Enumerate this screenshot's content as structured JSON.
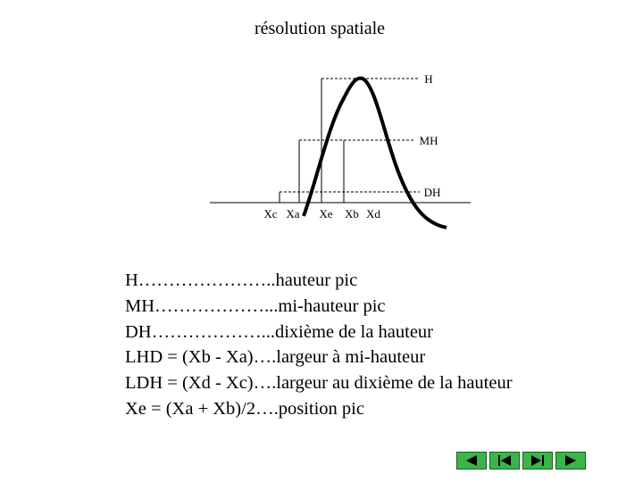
{
  "title": "résolution spatiale",
  "diagram": {
    "levels": [
      "H",
      "MH",
      "DH"
    ],
    "positions": [
      "Xc",
      "Xa",
      "Xe",
      "Xb",
      "Xd"
    ]
  },
  "definitions": [
    "H…………………..hauteur pic",
    "MH………………...mi-hauteur pic",
    "DH………………...dixième de la hauteur",
    "LHD = (Xb - Xa)….largeur à mi-hauteur",
    "LDH = (Xd - Xc)….largeur au dixième de la hauteur",
    "Xe = (Xa + Xb)/2….position pic"
  ]
}
